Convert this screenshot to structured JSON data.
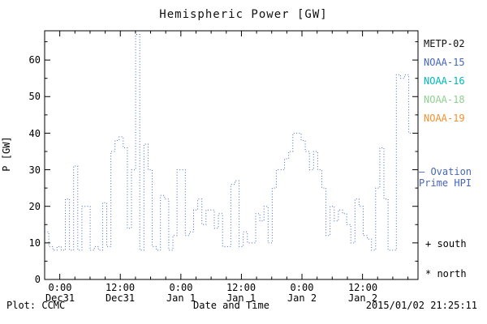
{
  "title": "Hemispheric Power [GW]",
  "y_axis": {
    "label": "P [GW]",
    "ticks": [
      "0",
      "10",
      "20",
      "30",
      "40",
      "50",
      "60"
    ]
  },
  "x_axis": {
    "label": "Date and Time",
    "ticks": [
      {
        "time": "0:00",
        "date": "Dec31"
      },
      {
        "time": "12:00",
        "date": "Dec31"
      },
      {
        "time": "0:00",
        "date": "Jan 1"
      },
      {
        "time": "12:00",
        "date": "Jan 1"
      },
      {
        "time": "0:00",
        "date": "Jan 2"
      },
      {
        "time": "12:00",
        "date": "Jan 2"
      }
    ]
  },
  "legend": {
    "satellites": [
      {
        "label": "METP-02",
        "color": "#111111"
      },
      {
        "label": "NOAA-15",
        "color": "#4466bb"
      },
      {
        "label": "NOAA-16",
        "color": "#00b8b8"
      },
      {
        "label": "NOAA-18",
        "color": "#8fd08f"
      },
      {
        "label": "NOAA-19",
        "color": "#f09030"
      }
    ],
    "ovation_line1": "— Ovation",
    "ovation_line2": "Prime HPI",
    "ovation_color": "#4466bb",
    "south_label": "+ south",
    "north_label": "* north"
  },
  "footer": {
    "left": "Plot: CCMC",
    "timestamp": "2015/01/02 21:25:11"
  },
  "colors": {
    "line": "#4466bb",
    "axis": "#000000"
  },
  "chart_data": {
    "type": "line",
    "title": "Hemispheric Power [GW]",
    "xlabel": "Date and Time",
    "ylabel": "P [GW]",
    "line_style": "dotted step",
    "x_unit": "hours since Dec31 0:00",
    "x_start": -3,
    "x_step": 0.82,
    "xlim": [
      -3,
      71
    ],
    "ylim": [
      0,
      68
    ],
    "x_tick_hours": [
      0,
      12,
      24,
      36,
      48,
      60
    ],
    "x_minor_step": 3,
    "y_ticks": [
      0,
      10,
      20,
      30,
      40,
      50,
      60
    ],
    "y_minor_step": 5,
    "values": [
      13,
      9,
      8,
      9,
      8,
      22,
      8,
      31,
      8,
      20,
      20,
      8,
      9,
      8,
      21,
      9,
      35,
      38,
      39,
      36,
      14,
      30,
      67,
      8,
      37,
      30,
      9,
      8,
      23,
      22,
      8,
      12,
      30,
      30,
      12,
      13,
      19,
      22,
      15,
      19,
      19,
      14,
      18,
      9,
      9,
      26,
      27,
      9,
      13,
      10,
      10,
      18,
      16,
      20,
      10,
      25,
      30,
      30,
      33,
      35,
      40,
      40,
      38,
      35,
      30,
      35,
      30,
      25,
      12,
      20,
      16,
      19,
      18,
      15,
      10,
      22,
      20,
      12,
      11,
      8,
      25,
      36,
      22,
      8,
      8,
      56,
      55,
      56,
      40
    ]
  }
}
